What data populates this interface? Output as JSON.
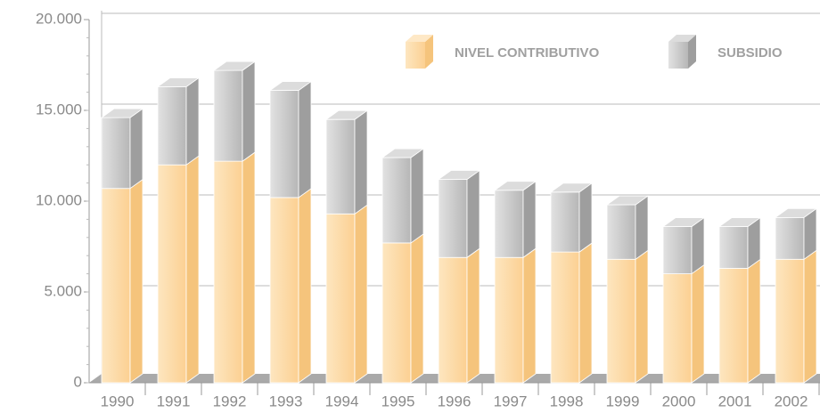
{
  "chart_data": {
    "type": "bar3d_stacked",
    "categories": [
      "1990",
      "1991",
      "1992",
      "1993",
      "1994",
      "1995",
      "1996",
      "1997",
      "1998",
      "1999",
      "2000",
      "2001",
      "2002"
    ],
    "series": [
      {
        "name": "NIVEL CONTRIBUTIVO",
        "color": "#fcd59a",
        "values": [
          10700,
          12000,
          12200,
          10200,
          9300,
          7700,
          6900,
          6900,
          7200,
          6800,
          6000,
          6300,
          6800
        ]
      },
      {
        "name": "SUBSIDIO",
        "color": "#c4c4c4",
        "values": [
          3900,
          4300,
          5000,
          5900,
          5200,
          4700,
          4300,
          3700,
          3300,
          3000,
          2600,
          2300,
          2300
        ]
      }
    ],
    "ylim": [
      0,
      20000
    ],
    "yticks": [
      0,
      {
        "value": 5000,
        "label": "5.000"
      },
      {
        "value": 10000,
        "label": "10.000"
      },
      {
        "value": 15000,
        "label": "15.000"
      },
      {
        "value": 20000,
        "label": "20.000"
      }
    ],
    "grid": true,
    "legend": "top-right"
  }
}
